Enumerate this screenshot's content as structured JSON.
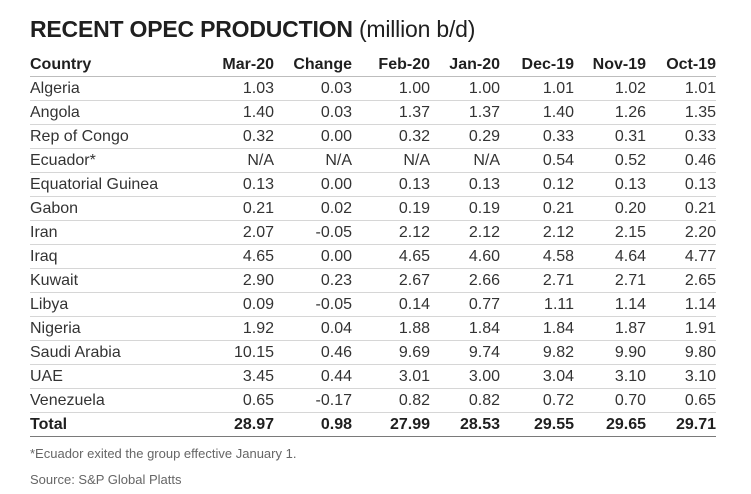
{
  "title": "RECENT OPEC PRODUCTION",
  "title_unit": "(million b/d)",
  "columns": [
    "Country",
    "Mar-20",
    "Change",
    "Feb-20",
    "Jan-20",
    "Dec-19",
    "Nov-19",
    "Oct-19"
  ],
  "rows": [
    [
      "Algeria",
      "1.03",
      "0.03",
      "1.00",
      "1.00",
      "1.01",
      "1.02",
      "1.01"
    ],
    [
      "Angola",
      "1.40",
      "0.03",
      "1.37",
      "1.37",
      "1.40",
      "1.26",
      "1.35"
    ],
    [
      "Rep of Congo",
      "0.32",
      "0.00",
      "0.32",
      "0.29",
      "0.33",
      "0.31",
      "0.33"
    ],
    [
      "Ecuador*",
      "N/A",
      "N/A",
      "N/A",
      "N/A",
      "0.54",
      "0.52",
      "0.46"
    ],
    [
      "Equatorial Guinea",
      "0.13",
      "0.00",
      "0.13",
      "0.13",
      "0.12",
      "0.13",
      "0.13"
    ],
    [
      "Gabon",
      "0.21",
      "0.02",
      "0.19",
      "0.19",
      "0.21",
      "0.20",
      "0.21"
    ],
    [
      "Iran",
      "2.07",
      "-0.05",
      "2.12",
      "2.12",
      "2.12",
      "2.15",
      "2.20"
    ],
    [
      "Iraq",
      "4.65",
      "0.00",
      "4.65",
      "4.60",
      "4.58",
      "4.64",
      "4.77"
    ],
    [
      "Kuwait",
      "2.90",
      "0.23",
      "2.67",
      "2.66",
      "2.71",
      "2.71",
      "2.65"
    ],
    [
      "Libya",
      "0.09",
      "-0.05",
      "0.14",
      "0.77",
      "1.11",
      "1.14",
      "1.14"
    ],
    [
      "Nigeria",
      "1.92",
      "0.04",
      "1.88",
      "1.84",
      "1.84",
      "1.87",
      "1.91"
    ],
    [
      "Saudi Arabia",
      "10.15",
      "0.46",
      "9.69",
      "9.74",
      "9.82",
      "9.90",
      "9.80"
    ],
    [
      "UAE",
      "3.45",
      "0.44",
      "3.01",
      "3.00",
      "3.04",
      "3.10",
      "3.10"
    ],
    [
      "Venezuela",
      "0.65",
      "-0.17",
      "0.82",
      "0.82",
      "0.72",
      "0.70",
      "0.65"
    ]
  ],
  "total_row": [
    "Total",
    "28.97",
    "0.98",
    "27.99",
    "28.53",
    "29.55",
    "29.65",
    "29.71"
  ],
  "footnote": "*Ecuador exited the group effective January 1.",
  "source": "Source: S&P Global Platts"
}
